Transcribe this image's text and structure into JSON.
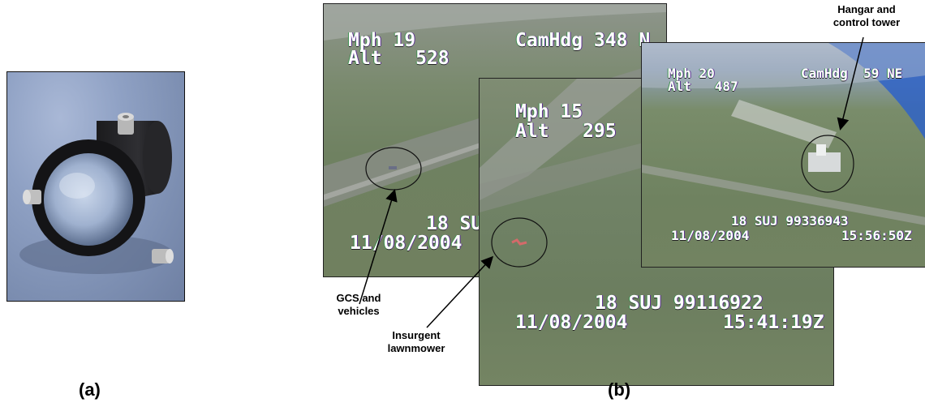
{
  "panel_a": {
    "label": "(a)"
  },
  "panel_b": {
    "label": "(b)",
    "frame_left": {
      "speed_line": "Mph 19",
      "heading_line": "CamHdg 348 N",
      "alt_line": "Alt   528",
      "grid_line": "18 SU",
      "date_line": "11/08/2004"
    },
    "frame_mid": {
      "speed_line": "Mph 15",
      "alt_line": "Alt   295",
      "grid_line": "18 SUJ 99116922",
      "date_line": "11/08/2004",
      "time_line": "15:41:19Z"
    },
    "frame_right": {
      "speed_line": "Mph 20",
      "heading_line": "CamHdg  59 NE",
      "alt_line": "Alt   487",
      "grid_line": "18 SUJ 99336943",
      "date_line": "11/08/2004",
      "time_line": "15:56:50Z"
    },
    "annotations": {
      "hangar": "Hangar and control tower",
      "hangar_line1": "Hangar and",
      "hangar_line2": "control tower",
      "gcs_line1": "GCS and",
      "gcs_line2": "vehicles",
      "mower_line1": "Insurgent",
      "mower_line2": "lawnmower"
    }
  }
}
